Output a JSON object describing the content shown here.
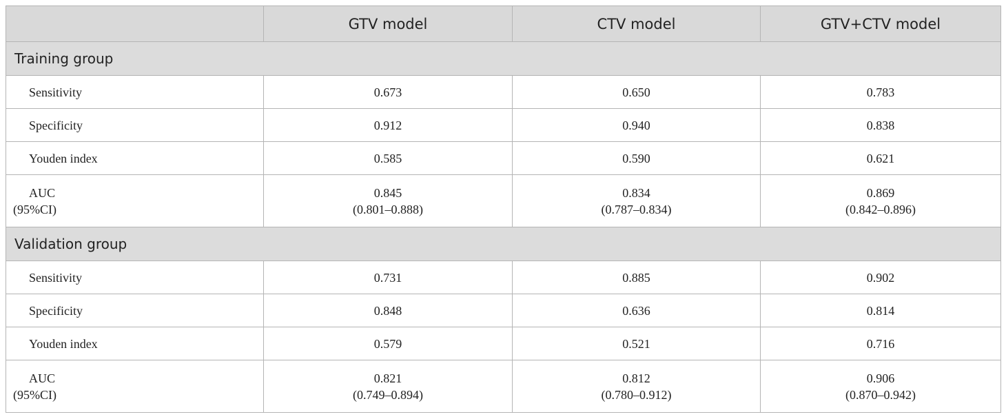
{
  "table": {
    "header": [
      "GTV model",
      "CTV model",
      "GTV+CTV model"
    ],
    "groups": [
      {
        "title": "Training group",
        "rows": [
          {
            "label": [
              "Sensitivity"
            ],
            "cells": [
              [
                "0.673"
              ],
              [
                "0.650"
              ],
              [
                "0.783"
              ]
            ]
          },
          {
            "label": [
              "Specificity"
            ],
            "cells": [
              [
                "0.912"
              ],
              [
                "0.940"
              ],
              [
                "0.838"
              ]
            ]
          },
          {
            "label": [
              "Youden index"
            ],
            "cells": [
              [
                "0.585"
              ],
              [
                "0.590"
              ],
              [
                "0.621"
              ]
            ]
          },
          {
            "label": [
              "AUC",
              "(95%CI)"
            ],
            "cells": [
              [
                "0.845",
                "(0.801–0.888)"
              ],
              [
                "0.834",
                "(0.787–0.834)"
              ],
              [
                "0.869",
                "(0.842–0.896)"
              ]
            ]
          }
        ]
      },
      {
        "title": "Validation group",
        "rows": [
          {
            "label": [
              "Sensitivity"
            ],
            "cells": [
              [
                "0.731"
              ],
              [
                "0.885"
              ],
              [
                "0.902"
              ]
            ]
          },
          {
            "label": [
              "Specificity"
            ],
            "cells": [
              [
                "0.848"
              ],
              [
                "0.636"
              ],
              [
                "0.814"
              ]
            ]
          },
          {
            "label": [
              "Youden index"
            ],
            "cells": [
              [
                "0.579"
              ],
              [
                "0.521"
              ],
              [
                "0.716"
              ]
            ]
          },
          {
            "label": [
              "AUC",
              "(95%CI)"
            ],
            "cells": [
              [
                "0.821",
                "(0.749–0.894)"
              ],
              [
                "0.812",
                "(0.780–0.912)"
              ],
              [
                "0.906",
                "(0.870–0.942)"
              ]
            ]
          }
        ]
      }
    ]
  }
}
